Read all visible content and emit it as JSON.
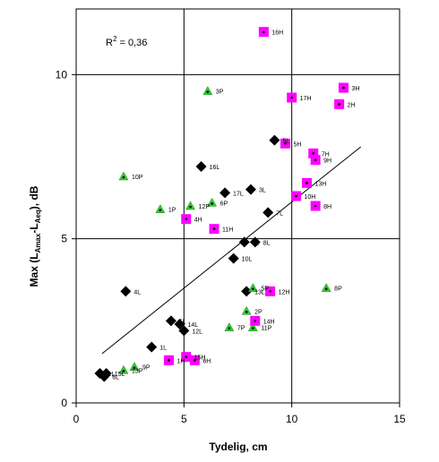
{
  "chart_data": {
    "type": "scatter",
    "title": "",
    "xlabel": "Tydelig, cm",
    "ylabel_parts": {
      "main": "Max (L",
      "sub1": "Amax",
      "mid": "-L",
      "sub2": "Aeq",
      "end": "), dB"
    },
    "xlim": [
      0,
      15
    ],
    "ylim": [
      0,
      12
    ],
    "xticks": [
      "0",
      "5",
      "10",
      "15"
    ],
    "yticks": [
      "0",
      "5",
      "10"
    ],
    "grid": true,
    "annotation": {
      "prefix": "R",
      "sup": "2",
      "suffix": " = 0,36"
    },
    "trendline": {
      "x": [
        1.2,
        13.2
      ],
      "y": [
        1.5,
        7.8
      ]
    },
    "series": [
      {
        "marker": "diamond",
        "color": "#000000",
        "points": [
          {
            "x": 9.2,
            "y": 8.0,
            "label": "5L"
          },
          {
            "x": 5.8,
            "y": 7.2,
            "label": "16L"
          },
          {
            "x": 6.9,
            "y": 6.4,
            "label": "17L"
          },
          {
            "x": 8.1,
            "y": 6.5,
            "label": "3L"
          },
          {
            "x": 8.9,
            "y": 5.8,
            "label": "7L"
          },
          {
            "x": 7.8,
            "y": 4.9,
            "label": "4L"
          },
          {
            "x": 8.3,
            "y": 4.9,
            "label": "8L"
          },
          {
            "x": 7.3,
            "y": 4.4,
            "label": "10L"
          },
          {
            "x": 2.3,
            "y": 3.4,
            "label": "4L"
          },
          {
            "x": 7.9,
            "y": 3.4,
            "label": "13L"
          },
          {
            "x": 4.4,
            "y": 2.5,
            "label": "5L"
          },
          {
            "x": 4.8,
            "y": 2.4,
            "label": "14L"
          },
          {
            "x": 5.0,
            "y": 2.2,
            "label": "12L"
          },
          {
            "x": 3.5,
            "y": 1.7,
            "label": "1L"
          },
          {
            "x": 1.1,
            "y": 0.9,
            "label": "1L"
          },
          {
            "x": 1.3,
            "y": 0.8,
            "label": "6L"
          },
          {
            "x": 1.4,
            "y": 0.9,
            "label": "15L"
          }
        ]
      },
      {
        "marker": "triangle",
        "color": "#33cc33",
        "points": [
          {
            "x": 6.1,
            "y": 9.5,
            "label": "3P"
          },
          {
            "x": 2.2,
            "y": 6.9,
            "label": "10P"
          },
          {
            "x": 3.9,
            "y": 5.9,
            "label": "1P"
          },
          {
            "x": 5.3,
            "y": 6.0,
            "label": "12P"
          },
          {
            "x": 6.3,
            "y": 6.1,
            "label": "6P"
          },
          {
            "x": 8.2,
            "y": 3.5,
            "label": "5P"
          },
          {
            "x": 11.6,
            "y": 3.5,
            "label": "8P"
          },
          {
            "x": 7.9,
            "y": 2.8,
            "label": "2P"
          },
          {
            "x": 7.1,
            "y": 2.3,
            "label": "7P"
          },
          {
            "x": 8.2,
            "y": 2.3,
            "label": "11P"
          },
          {
            "x": 2.7,
            "y": 1.1,
            "label": "9P"
          },
          {
            "x": 2.2,
            "y": 1.0,
            "label": "13P"
          }
        ]
      },
      {
        "marker": "square",
        "color": "#ff00ff",
        "points": [
          {
            "x": 8.7,
            "y": 11.3,
            "label": "16H"
          },
          {
            "x": 10.0,
            "y": 9.3,
            "label": "17H"
          },
          {
            "x": 12.4,
            "y": 9.6,
            "label": "3H"
          },
          {
            "x": 12.2,
            "y": 9.1,
            "label": "2H"
          },
          {
            "x": 9.7,
            "y": 7.9,
            "label": "5H"
          },
          {
            "x": 11.0,
            "y": 7.6,
            "label": "7H"
          },
          {
            "x": 11.1,
            "y": 7.4,
            "label": "9H"
          },
          {
            "x": 10.7,
            "y": 6.7,
            "label": "13H"
          },
          {
            "x": 10.2,
            "y": 6.3,
            "label": "10H"
          },
          {
            "x": 11.1,
            "y": 6.0,
            "label": "8H"
          },
          {
            "x": 5.1,
            "y": 5.6,
            "label": "4H"
          },
          {
            "x": 6.4,
            "y": 5.3,
            "label": "11H"
          },
          {
            "x": 9.0,
            "y": 3.4,
            "label": "12H"
          },
          {
            "x": 8.3,
            "y": 2.5,
            "label": "14H"
          },
          {
            "x": 4.3,
            "y": 1.3,
            "label": "1H"
          },
          {
            "x": 5.1,
            "y": 1.4,
            "label": "15H"
          },
          {
            "x": 5.5,
            "y": 1.3,
            "label": "6H"
          }
        ]
      }
    ]
  }
}
